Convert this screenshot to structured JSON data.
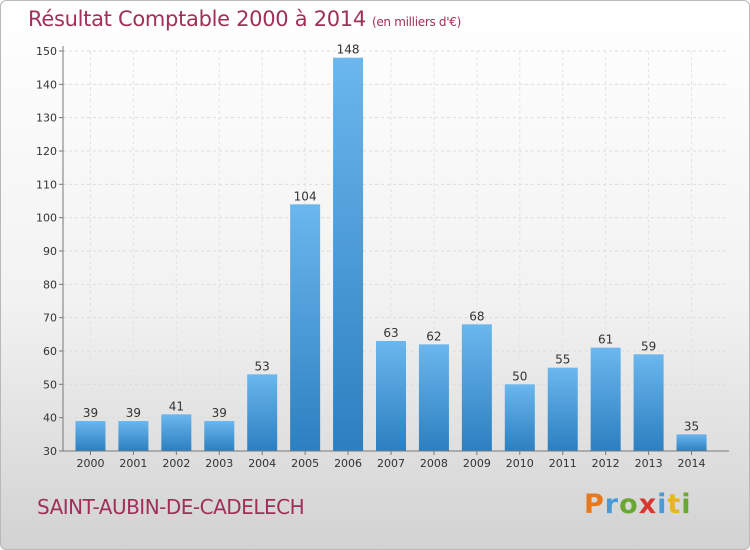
{
  "header": {
    "title": "Résultat Comptable 2000 à 2014",
    "unit": "(en milliers d'€)"
  },
  "footer": {
    "commune": "SAINT-AUBIN-DE-CADELECH",
    "logo": "Proxiti"
  },
  "colors": {
    "bar_light": "#6bb7ee",
    "bar_dark": "#2c7fc0",
    "title": "#a0305a"
  },
  "chart_data": {
    "type": "bar",
    "title": "Résultat Comptable 2000 à 2014",
    "ylabel": "en milliers d'€",
    "xlabel": "",
    "categories": [
      "2000",
      "2001",
      "2002",
      "2003",
      "2004",
      "2005",
      "2006",
      "2007",
      "2008",
      "2009",
      "2010",
      "2011",
      "2012",
      "2013",
      "2014"
    ],
    "values": [
      39,
      39,
      41,
      39,
      53,
      104,
      148,
      63,
      62,
      68,
      50,
      55,
      61,
      59,
      35
    ],
    "ylim": [
      30,
      150
    ],
    "yticks": [
      30,
      40,
      50,
      60,
      70,
      80,
      90,
      100,
      110,
      120,
      130,
      140,
      150
    ],
    "grid": true,
    "legend": "none"
  }
}
